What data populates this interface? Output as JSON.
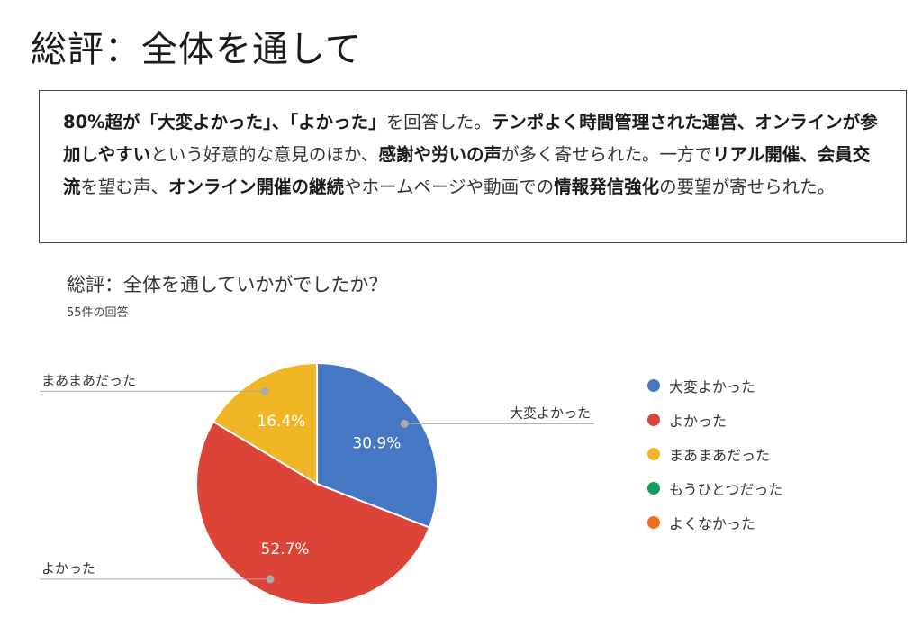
{
  "page": {
    "title": "総評：全体を通して",
    "summary": [
      {
        "text": "80%超が「大変よかった」、「よかった」",
        "bold": true
      },
      {
        "text": "を回答した。",
        "bold": false
      },
      {
        "text": "テンポよく時間管理された運営、オンラインが参加しやすい",
        "bold": true
      },
      {
        "text": "という好意的な意見のほか、",
        "bold": false
      },
      {
        "text": "感謝や労いの声",
        "bold": true
      },
      {
        "text": "が多く寄せられた。一方で",
        "bold": false
      },
      {
        "text": "リアル開催、会員交流",
        "bold": true
      },
      {
        "text": "を望む声、",
        "bold": false
      },
      {
        "text": "オンライン開催の継続",
        "bold": true
      },
      {
        "text": "やホームページや動画での",
        "bold": false
      },
      {
        "text": "情報発信強化",
        "bold": true
      },
      {
        "text": "の要望が寄せられた。",
        "bold": false
      }
    ]
  },
  "question": {
    "title": "総評：全体を通していかがでしたか？",
    "count": "55件の回答"
  },
  "colors": {
    "series": [
      "#4677c4",
      "#db4437",
      "#f1b625",
      "#129d58",
      "#f16f1a"
    ]
  },
  "chart_data": {
    "type": "pie",
    "title": "総評：全体を通していかがでしたか？",
    "total": 55,
    "slices": [
      {
        "label": "大変よかった",
        "value": 30.9,
        "value_label": "30.9%"
      },
      {
        "label": "よかった",
        "value": 52.7,
        "value_label": "52.7%"
      },
      {
        "label": "まあまあだった",
        "value": 16.4,
        "value_label": "16.4%"
      },
      {
        "label": "もうひとつだった",
        "value": 0,
        "value_label": ""
      },
      {
        "label": "よくなかった",
        "value": 0,
        "value_label": ""
      }
    ],
    "legend": [
      "大変よかった",
      "よかった",
      "まあまあだった",
      "もうひとつだった",
      "よくなかった"
    ],
    "legend_position": "right"
  }
}
